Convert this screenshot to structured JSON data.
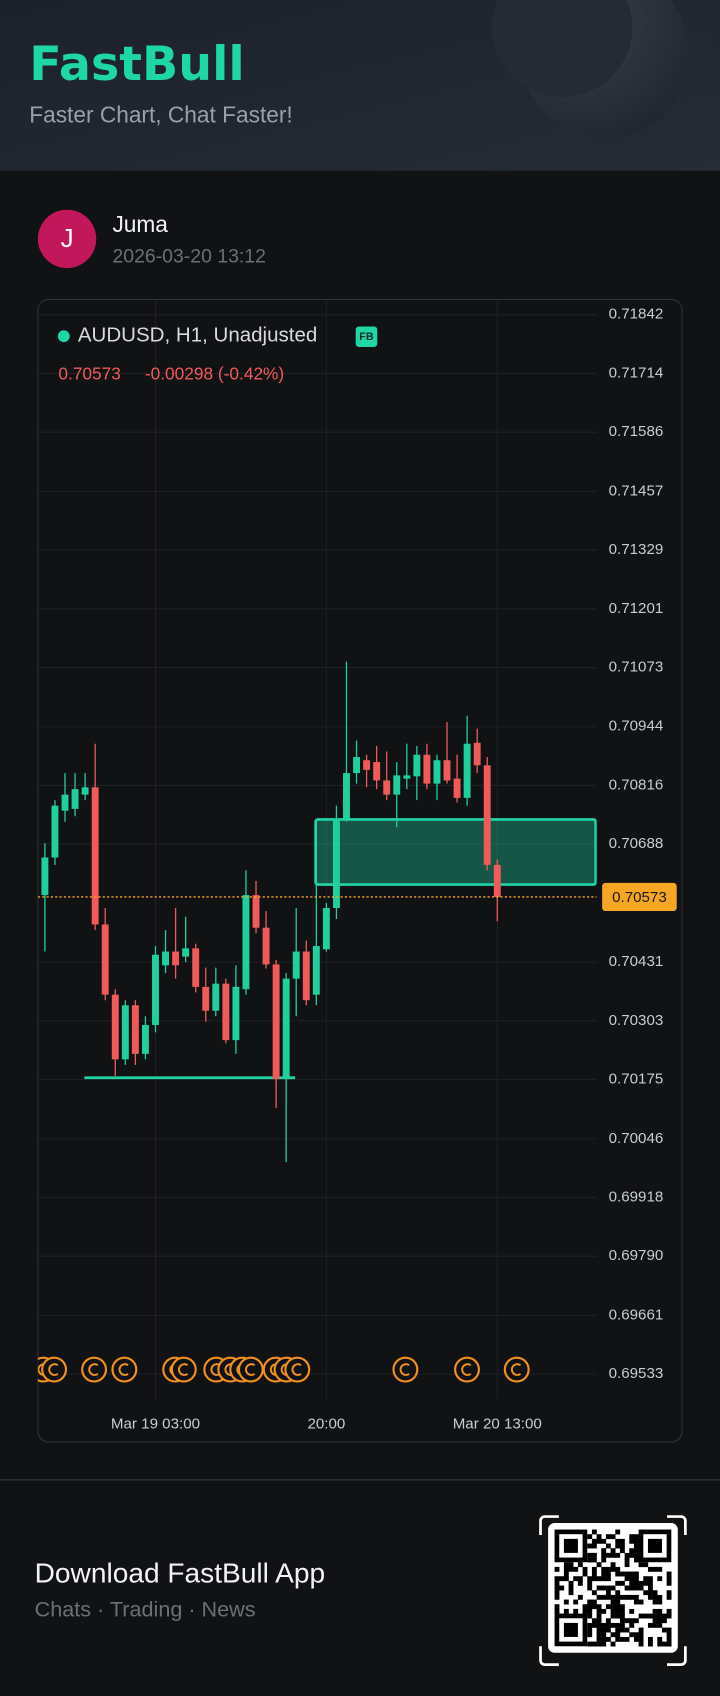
{
  "header": {
    "brand": "FastBull",
    "tagline": "Faster Chart, Chat Faster!"
  },
  "post": {
    "avatar": "J",
    "user": "Juma",
    "time": "2026-03-20 13:12"
  },
  "footer": {
    "title": "Download FastBull App",
    "subtitle": "Chats · Trading · News"
  },
  "chart_data": {
    "type": "candlestick",
    "title": "AUDUSD, H1, Unadjusted",
    "badge": "FB",
    "last": 0.70573,
    "change_text": "-0.00298 (-0.42%)",
    "categories": [
      null,
      null,
      null,
      null,
      null,
      null,
      null,
      null,
      null,
      null,
      null,
      "Mar 19 03:00",
      null,
      null,
      null,
      null,
      null,
      null,
      null,
      null,
      null,
      null,
      null,
      null,
      null,
      null,
      null,
      null,
      "20:00",
      null,
      null,
      null,
      null,
      null,
      null,
      null,
      null,
      null,
      null,
      null,
      null,
      null,
      null,
      null,
      null,
      "Mar 20 13:00"
    ],
    "open": [
      0.70577,
      0.70659,
      0.70761,
      0.70765,
      0.70796,
      0.70812,
      0.70513,
      0.7036,
      0.70219,
      0.70337,
      0.70231,
      0.70294,
      0.70424,
      0.70454,
      0.70443,
      0.70461,
      0.70377,
      0.70325,
      0.70384,
      0.70261,
      0.70372,
      0.70577,
      0.70506,
      0.70426,
      0.70176,
      0.70395,
      0.70454,
      0.7036,
      0.70459,
      0.70549,
      0.70744,
      0.70843,
      0.70871,
      0.70867,
      0.70827,
      0.70796,
      0.70831,
      0.70836,
      0.70883,
      0.7082,
      0.70871,
      0.70831,
      0.70789,
      0.70909,
      0.7086,
      0.70643
    ],
    "high": [
      0.7069,
      0.70784,
      0.70843,
      0.70843,
      0.70843,
      0.70907,
      0.70549,
      0.70372,
      0.70348,
      0.70348,
      0.70313,
      0.70466,
      0.70501,
      0.70549,
      0.7053,
      0.70471,
      0.70419,
      0.70419,
      0.70395,
      0.70424,
      0.70631,
      0.70608,
      0.70542,
      0.70436,
      0.70407,
      0.70549,
      0.70478,
      0.70608,
      0.7056,
      0.70772,
      0.71086,
      0.70914,
      0.70883,
      0.70902,
      0.7089,
      0.70867,
      0.70907,
      0.70902,
      0.70907,
      0.70883,
      0.70954,
      0.70883,
      0.70968,
      0.7094,
      0.70878,
      0.70655
    ],
    "low": [
      0.70454,
      0.70643,
      0.70737,
      0.70749,
      0.70784,
      0.70501,
      0.70348,
      0.70183,
      0.70207,
      0.70207,
      0.70219,
      0.70278,
      0.70407,
      0.70395,
      0.70431,
      0.70365,
      0.70301,
      0.70313,
      0.70254,
      0.70231,
      0.7036,
      0.70494,
      0.70417,
      0.70113,
      0.69995,
      0.70313,
      0.70337,
      0.70337,
      0.70454,
      0.70525,
      0.70737,
      0.7082,
      0.70812,
      0.70808,
      0.70784,
      0.70725,
      0.70808,
      0.70784,
      0.70808,
      0.70784,
      0.7082,
      0.70779,
      0.70772,
      0.70843,
      0.70631,
      0.7052
    ],
    "close": [
      0.70659,
      0.70772,
      0.70796,
      0.70808,
      0.70812,
      0.70513,
      0.7036,
      0.70219,
      0.70337,
      0.70231,
      0.70294,
      0.70447,
      0.70454,
      0.70424,
      0.70461,
      0.70377,
      0.70325,
      0.70384,
      0.70261,
      0.70377,
      0.70577,
      0.70506,
      0.70426,
      0.70176,
      0.70395,
      0.70454,
      0.70348,
      0.70466,
      0.70549,
      0.70744,
      0.70843,
      0.70878,
      0.7085,
      0.70827,
      0.70796,
      0.70838,
      0.70838,
      0.70883,
      0.7082,
      0.70871,
      0.70827,
      0.70789,
      0.70907,
      0.7086,
      0.70643,
      0.70573
    ],
    "up_color": "#1fcf9c",
    "down_color": "#f05a5a",
    "zone": {
      "top": 0.70742,
      "bottom": 0.706,
      "color": "#1fd6a5"
    },
    "support": {
      "value": 0.70179,
      "color": "#1fd6a5"
    },
    "price_line_color": "#f5a623",
    "ylim": [
      0.69477,
      0.71873
    ],
    "yticks": [
      0.69533,
      0.69661,
      {
        "value": 0.6979,
        "label": "0.69790"
      },
      0.69918,
      0.70046,
      0.70175,
      0.70303,
      0.70431,
      0.70688,
      0.70816,
      0.70944,
      0.71073,
      0.71201,
      0.71329,
      0.71457,
      0.71586,
      0.71714,
      0.71842
    ],
    "grid": true
  }
}
